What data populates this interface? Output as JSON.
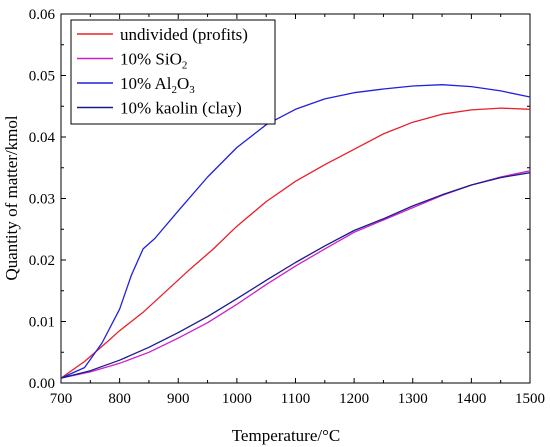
{
  "chart_data": {
    "type": "line",
    "xlabel": "Temperature/°C",
    "ylabel": "Quantity of matter/kmol",
    "xlim": [
      700,
      1500
    ],
    "ylim": [
      0,
      0.06
    ],
    "x_ticks": [
      "700",
      "800",
      "900",
      "1000",
      "1100",
      "1200",
      "1300",
      "1400",
      "1500"
    ],
    "y_ticks": [
      "0.00",
      "0.01",
      "0.02",
      "0.03",
      "0.04",
      "0.05",
      "0.06"
    ],
    "grid": false,
    "legend_position": "top-left",
    "series": [
      {
        "name_parts": [
          {
            "t": "undivided (profits)"
          }
        ],
        "color": "#e8202a",
        "points": [
          [
            700,
            0.0008
          ],
          [
            740,
            0.0035
          ],
          [
            780,
            0.0068
          ],
          [
            800,
            0.0085
          ],
          [
            840,
            0.0115
          ],
          [
            880,
            0.015
          ],
          [
            920,
            0.0185
          ],
          [
            960,
            0.0218
          ],
          [
            1000,
            0.0255
          ],
          [
            1050,
            0.0295
          ],
          [
            1100,
            0.0328
          ],
          [
            1150,
            0.0355
          ],
          [
            1200,
            0.038
          ],
          [
            1250,
            0.0405
          ],
          [
            1300,
            0.0424
          ],
          [
            1350,
            0.0437
          ],
          [
            1400,
            0.0444
          ],
          [
            1450,
            0.0447
          ],
          [
            1500,
            0.0445
          ]
        ]
      },
      {
        "name_parts": [
          {
            "t": "10% SiO"
          },
          {
            "t": "2",
            "sub": true
          }
        ],
        "color": "#cc1fcc",
        "points": [
          [
            700,
            0.0008
          ],
          [
            750,
            0.0018
          ],
          [
            800,
            0.0032
          ],
          [
            850,
            0.005
          ],
          [
            900,
            0.0073
          ],
          [
            950,
            0.0098
          ],
          [
            1000,
            0.0128
          ],
          [
            1050,
            0.016
          ],
          [
            1100,
            0.019
          ],
          [
            1150,
            0.0218
          ],
          [
            1200,
            0.0245
          ],
          [
            1250,
            0.0265
          ],
          [
            1300,
            0.0285
          ],
          [
            1350,
            0.0305
          ],
          [
            1400,
            0.0322
          ],
          [
            1450,
            0.0335
          ],
          [
            1500,
            0.0345
          ]
        ]
      },
      {
        "name_parts": [
          {
            "t": "10% Al"
          },
          {
            "t": "2",
            "sub": true
          },
          {
            "t": "O"
          },
          {
            "t": "3",
            "sub": true
          }
        ],
        "color": "#2020dd",
        "points": [
          [
            700,
            0.0008
          ],
          [
            740,
            0.0025
          ],
          [
            770,
            0.0065
          ],
          [
            800,
            0.012
          ],
          [
            820,
            0.0175
          ],
          [
            840,
            0.0218
          ],
          [
            860,
            0.0235
          ],
          [
            900,
            0.028
          ],
          [
            950,
            0.0335
          ],
          [
            1000,
            0.0383
          ],
          [
            1050,
            0.042
          ],
          [
            1100,
            0.0445
          ],
          [
            1150,
            0.0462
          ],
          [
            1200,
            0.0472
          ],
          [
            1250,
            0.0478
          ],
          [
            1300,
            0.0483
          ],
          [
            1350,
            0.0485
          ],
          [
            1400,
            0.0482
          ],
          [
            1450,
            0.0475
          ],
          [
            1500,
            0.0465
          ]
        ]
      },
      {
        "name_parts": [
          {
            "t": "10% kaolin (clay)"
          }
        ],
        "color": "#1a1a8c",
        "points": [
          [
            700,
            0.0008
          ],
          [
            750,
            0.002
          ],
          [
            800,
            0.0037
          ],
          [
            850,
            0.0058
          ],
          [
            900,
            0.0082
          ],
          [
            950,
            0.0108
          ],
          [
            1000,
            0.0137
          ],
          [
            1050,
            0.0167
          ],
          [
            1100,
            0.0196
          ],
          [
            1150,
            0.0223
          ],
          [
            1200,
            0.0248
          ],
          [
            1250,
            0.0267
          ],
          [
            1300,
            0.0288
          ],
          [
            1350,
            0.0306
          ],
          [
            1400,
            0.0322
          ],
          [
            1450,
            0.0334
          ],
          [
            1500,
            0.0342
          ]
        ]
      }
    ]
  }
}
